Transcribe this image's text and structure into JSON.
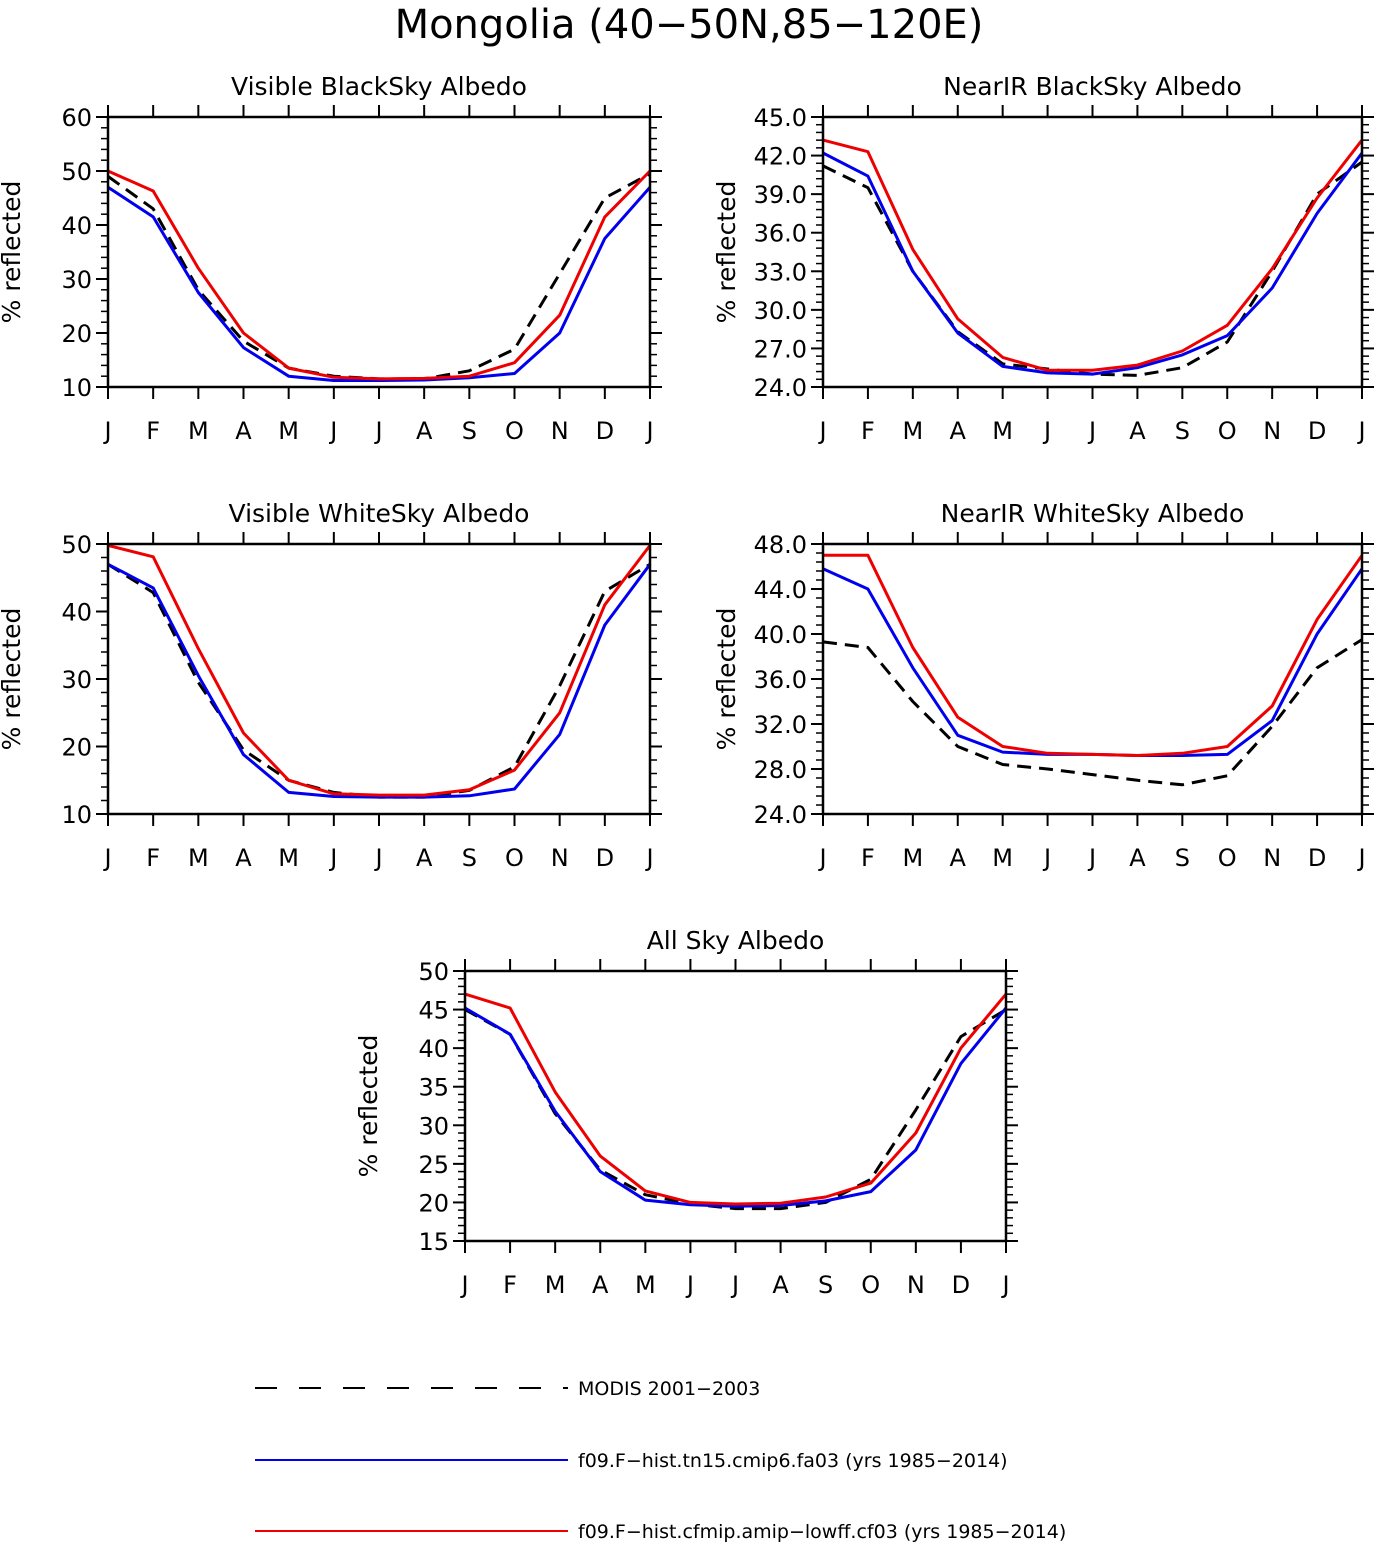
{
  "title": "Mongolia (40−50N,85−120E)",
  "legend": [
    {
      "label": "MODIS 2001−2003",
      "color": "#000000",
      "dash": true
    },
    {
      "label": "f09.F−hist.tn15.cmip6.fa03 (yrs 1985−2014)",
      "color": "#0000ee",
      "dash": false
    },
    {
      "label": "f09.F−hist.cfmip.amip−lowff.cf03 (yrs 1985−2014)",
      "color": "#ee0000",
      "dash": false
    }
  ],
  "chart_data": [
    {
      "type": "line",
      "title": "Visible BlackSky Albedo",
      "ylabel": "% reflected",
      "categories": [
        "J",
        "F",
        "M",
        "A",
        "M",
        "J",
        "J",
        "A",
        "S",
        "O",
        "N",
        "D",
        "J"
      ],
      "ylim": [
        10,
        60
      ],
      "yticks": [
        "10",
        "20",
        "30",
        "40",
        "50",
        "60"
      ],
      "series": [
        {
          "values": [
            49.0,
            43.0,
            28.0,
            18.5,
            13.5,
            12.0,
            11.5,
            11.5,
            13.0,
            17.0,
            31.0,
            45.0,
            49.5
          ]
        },
        {
          "values": [
            47.0,
            41.5,
            27.5,
            17.3,
            12.0,
            11.2,
            11.2,
            11.3,
            11.7,
            12.5,
            20.0,
            37.5,
            47.0
          ]
        },
        {
          "values": [
            50.0,
            46.3,
            32.0,
            20.0,
            13.5,
            11.8,
            11.5,
            11.6,
            12.0,
            14.5,
            23.3,
            41.5,
            50.0
          ]
        }
      ]
    },
    {
      "type": "line",
      "title": "NearIR BlackSky Albedo",
      "ylabel": "% reflected",
      "categories": [
        "J",
        "F",
        "M",
        "A",
        "M",
        "J",
        "J",
        "A",
        "S",
        "O",
        "N",
        "D",
        "J"
      ],
      "ylim": [
        24,
        45
      ],
      "yticks": [
        "24.0",
        "27.0",
        "30.0",
        "33.0",
        "36.0",
        "39.0",
        "42.0",
        "45.0"
      ],
      "series": [
        {
          "values": [
            41.2,
            39.5,
            33.0,
            28.3,
            25.8,
            25.4,
            25.0,
            24.9,
            25.5,
            27.5,
            33.0,
            39.0,
            41.5
          ]
        },
        {
          "values": [
            42.2,
            40.4,
            33.0,
            28.2,
            25.6,
            25.1,
            25.0,
            25.5,
            26.5,
            28.0,
            31.7,
            37.5,
            42.2
          ]
        },
        {
          "values": [
            43.2,
            42.3,
            34.7,
            29.3,
            26.3,
            25.3,
            25.3,
            25.7,
            26.8,
            28.8,
            33.2,
            38.7,
            43.2
          ]
        }
      ]
    },
    {
      "type": "line",
      "title": "Visible WhiteSky Albedo",
      "ylabel": "% reflected",
      "categories": [
        "J",
        "F",
        "M",
        "A",
        "M",
        "J",
        "J",
        "A",
        "S",
        "O",
        "N",
        "D",
        "J"
      ],
      "ylim": [
        10,
        50
      ],
      "yticks": [
        "10",
        "20",
        "30",
        "40",
        "50"
      ],
      "series": [
        {
          "values": [
            47.0,
            42.8,
            29.5,
            19.5,
            15.0,
            13.2,
            12.5,
            12.5,
            13.5,
            17.0,
            29.0,
            43.0,
            47.0
          ]
        },
        {
          "values": [
            47.0,
            43.5,
            30.5,
            18.8,
            13.2,
            12.6,
            12.5,
            12.5,
            12.7,
            13.7,
            21.8,
            38.0,
            47.0
          ]
        },
        {
          "values": [
            49.8,
            48.1,
            34.5,
            22.0,
            15.0,
            13.0,
            12.8,
            12.8,
            13.6,
            16.5,
            25.0,
            41.0,
            49.8
          ]
        }
      ]
    },
    {
      "type": "line",
      "title": "NearIR WhiteSky Albedo",
      "ylabel": "% reflected",
      "categories": [
        "J",
        "F",
        "M",
        "A",
        "M",
        "J",
        "J",
        "A",
        "S",
        "O",
        "N",
        "D",
        "J"
      ],
      "ylim": [
        24,
        48
      ],
      "yticks": [
        "24.0",
        "28.0",
        "32.0",
        "36.0",
        "40.0",
        "44.0",
        "48.0"
      ],
      "series": [
        {
          "values": [
            39.3,
            38.8,
            34.0,
            30.0,
            28.4,
            28.0,
            27.5,
            27.0,
            26.6,
            27.4,
            31.8,
            37.0,
            39.5
          ]
        },
        {
          "values": [
            45.8,
            44.0,
            37.0,
            31.0,
            29.5,
            29.3,
            29.3,
            29.2,
            29.2,
            29.3,
            32.3,
            40.0,
            45.8
          ]
        },
        {
          "values": [
            47.0,
            47.0,
            38.8,
            32.6,
            30.0,
            29.4,
            29.3,
            29.2,
            29.4,
            30.0,
            33.6,
            41.3,
            47.0
          ]
        }
      ]
    },
    {
      "type": "line",
      "title": "All Sky Albedo",
      "ylabel": "% reflected",
      "categories": [
        "J",
        "F",
        "M",
        "A",
        "M",
        "J",
        "J",
        "A",
        "S",
        "O",
        "N",
        "D",
        "J"
      ],
      "ylim": [
        15,
        50
      ],
      "yticks": [
        "15",
        "20",
        "25",
        "30",
        "35",
        "40",
        "45",
        "50"
      ],
      "series": [
        {
          "values": [
            45.0,
            41.8,
            31.5,
            24.2,
            21.0,
            19.8,
            19.2,
            19.2,
            20.0,
            23.0,
            32.0,
            41.5,
            45.0
          ]
        },
        {
          "values": [
            45.2,
            41.8,
            31.8,
            24.0,
            20.3,
            19.7,
            19.5,
            19.6,
            20.2,
            21.4,
            26.8,
            38.0,
            45.2
          ]
        },
        {
          "values": [
            47.0,
            45.2,
            34.3,
            26.0,
            21.5,
            20.0,
            19.8,
            19.9,
            20.7,
            22.5,
            29.0,
            40.0,
            47.0
          ]
        }
      ]
    }
  ]
}
